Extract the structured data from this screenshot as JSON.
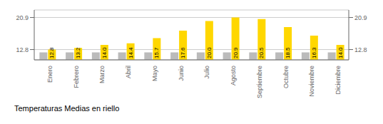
{
  "chart_data": {
    "type": "bar",
    "title": "Temperaturas Medias en riello",
    "categories": [
      "Enero",
      "Febrero",
      "Marzo",
      "Abril",
      "Mayo",
      "Junio",
      "Julio",
      "Agosto",
      "Septiembre",
      "Octubre",
      "Noviembre",
      "Diciembre"
    ],
    "series": [
      {
        "color": "#BBBBBB",
        "values": [
          12.1,
          12.1,
          12.1,
          12.1,
          12.1,
          12.1,
          12.1,
          12.1,
          12.1,
          12.1,
          12.1,
          12.1
        ]
      },
      {
        "color": "#FFD700",
        "values": [
          12.8,
          13.2,
          14.0,
          14.4,
          15.7,
          17.6,
          20.0,
          20.9,
          20.5,
          18.5,
          16.3,
          14.0
        ],
        "value_labels": [
          "12.8",
          "13.2",
          "14.0",
          "14.4",
          "15.7",
          "17.6",
          "20.0",
          "20.9",
          "20.5",
          "18.5",
          "16.3",
          "14.0"
        ],
        "data_labels": true
      }
    ],
    "ylim": [
      10.2,
      22.8
    ],
    "yticks": [
      12.8,
      20.9
    ],
    "grid": true
  }
}
